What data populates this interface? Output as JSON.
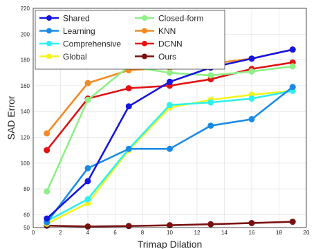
{
  "chart_data": {
    "type": "line",
    "title": "",
    "xlabel": "Trimap Dilation",
    "ylabel": "SAD Error",
    "xlim": [
      0,
      20
    ],
    "ylim": [
      50,
      220
    ],
    "xticks": [
      0,
      2,
      4,
      6,
      8,
      10,
      12,
      14,
      16,
      18,
      20
    ],
    "yticks": [
      50,
      60,
      80,
      100,
      120,
      140,
      160,
      180,
      200,
      220
    ],
    "grid": true,
    "legend_position": "top-left",
    "legend_columns": 2,
    "x": [
      1,
      4,
      7,
      10,
      13,
      16,
      19
    ],
    "series": [
      {
        "name": "Shared",
        "color": "#1515e0",
        "values": [
          57,
          86,
          144,
          163,
          174,
          181,
          188
        ]
      },
      {
        "name": "Learning",
        "color": "#1b8ae6",
        "values": [
          54,
          96,
          111,
          111,
          129,
          134,
          159
        ]
      },
      {
        "name": "Comprehensive",
        "color": "#2ef0f0",
        "values": [
          55,
          72,
          111,
          145,
          147,
          150,
          156
        ]
      },
      {
        "name": "Global",
        "color": "#f4f41e",
        "values": [
          53,
          69,
          110,
          143,
          149,
          153,
          156
        ]
      },
      {
        "name": "Closed-form",
        "color": "#8ef086",
        "values": [
          78,
          149,
          175,
          170,
          168,
          171,
          175
        ]
      },
      {
        "name": "KNN",
        "color": "#f68a22",
        "values": [
          123,
          162,
          172,
          174,
          177,
          181,
          188
        ]
      },
      {
        "name": "DCNN",
        "color": "#e11212",
        "values": [
          110,
          150,
          158,
          160,
          165,
          173,
          178
        ]
      },
      {
        "name": "Ours",
        "color": "#7a1010",
        "values": [
          51.5,
          50.8,
          51.2,
          51.8,
          52.6,
          53.5,
          54.5
        ]
      }
    ]
  }
}
